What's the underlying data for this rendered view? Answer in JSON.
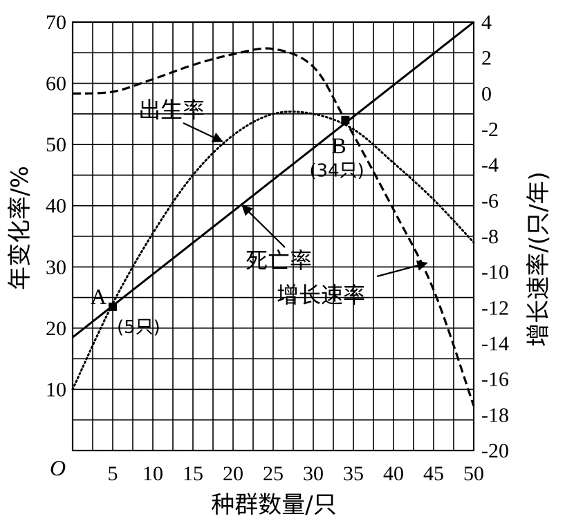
{
  "chart_data": {
    "type": "line",
    "xlabel": "种群数量/只",
    "ylabel_left": "年变化率/%",
    "ylabel_right": "增长速率/(只/年)",
    "origin_label": "O",
    "x_range": [
      0,
      50
    ],
    "x_ticks": [
      5,
      10,
      15,
      20,
      25,
      30,
      35,
      40,
      45,
      50
    ],
    "x_grid_step": 2.5,
    "y_left_range": [
      0,
      70
    ],
    "y_left_ticks": [
      10,
      20,
      30,
      40,
      50,
      60,
      70
    ],
    "y_left_grid_step": 5,
    "y_right_range": [
      -20,
      4
    ],
    "y_right_ticks": [
      4,
      2,
      0,
      -2,
      -4,
      -6,
      -8,
      -10,
      -12,
      -14,
      -16,
      -18,
      -20
    ],
    "grid": true,
    "series": [
      {
        "name": "出生率",
        "axis": "left",
        "style": "dotted",
        "x": [
          0,
          5,
          10,
          15,
          20,
          25,
          30,
          35,
          40,
          45,
          50
        ],
        "y": [
          10,
          24,
          35.5,
          45,
          51.5,
          55,
          55,
          52.5,
          47,
          41,
          34
        ]
      },
      {
        "name": "死亡率",
        "axis": "left",
        "style": "solid",
        "x": [
          0,
          50
        ],
        "y": [
          18.5,
          70
        ]
      },
      {
        "name": "增长速率",
        "axis": "right",
        "style": "dashed",
        "x": [
          0,
          5,
          10,
          15,
          20,
          25,
          30,
          34,
          40,
          45,
          50
        ],
        "y": [
          0,
          0.1,
          0.8,
          1.6,
          2.2,
          2.5,
          1.5,
          -1.5,
          -6.5,
          -11,
          -17.5
        ]
      }
    ],
    "points": [
      {
        "label": "A",
        "sublabel": "(5只)",
        "x": 5,
        "y": 23.5
      },
      {
        "label": "B",
        "sublabel": "(34只)",
        "x": 34,
        "y": 54
      }
    ],
    "annotations": [
      {
        "text": "出生率",
        "target_x": 19,
        "target_y": 50.5
      },
      {
        "text": "死亡率",
        "target_x": 21.5,
        "target_y": 40.5
      },
      {
        "text": "增长速率",
        "target_x": 44.5,
        "target_y": -9.5
      }
    ]
  }
}
